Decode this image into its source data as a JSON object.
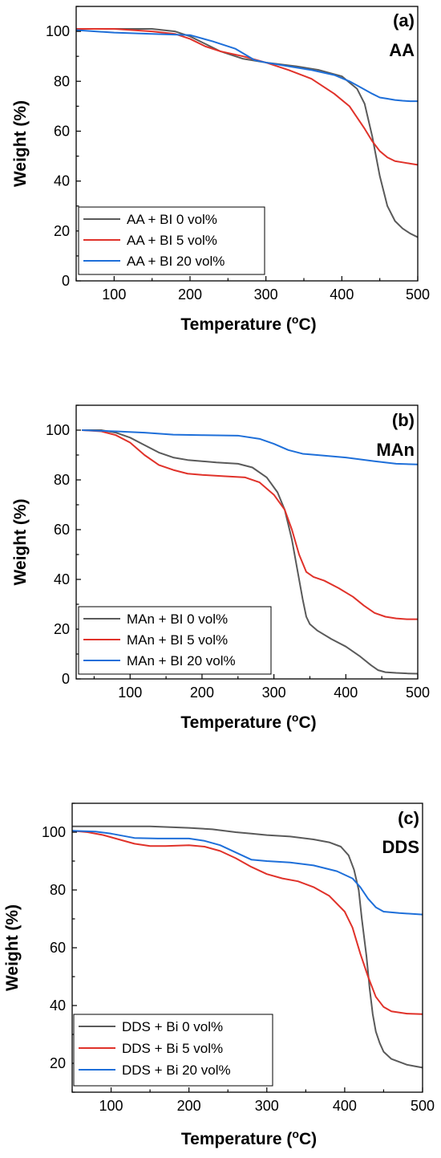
{
  "chart_data": [
    {
      "type": "line",
      "panel_label": "(a)",
      "panel_name": "AA",
      "xlabel": "Temperature (",
      "xlabel_sup": "o",
      "xlabel_end": "C)",
      "ylabel": "Weight (%)",
      "xlim": [
        50,
        500
      ],
      "ylim": [
        0,
        110
      ],
      "xticks": [
        100,
        200,
        300,
        400,
        500
      ],
      "yticks": [
        0,
        20,
        40,
        60,
        80,
        100
      ],
      "legend_position": "bottom-left",
      "series": [
        {
          "name": "AA + BI 0 vol%",
          "color": "#5a5a5a",
          "x": [
            50,
            100,
            150,
            180,
            200,
            220,
            240,
            270,
            300,
            340,
            370,
            400,
            420,
            430,
            440,
            450,
            460,
            470,
            480,
            490,
            500
          ],
          "y": [
            101,
            101,
            101,
            100,
            98,
            95,
            92,
            89,
            87.5,
            86,
            84.5,
            82,
            77,
            71,
            58,
            42,
            30,
            24,
            21,
            19,
            17.5
          ]
        },
        {
          "name": "AA + BI 5 vol%",
          "color": "#e0322a",
          "x": [
            50,
            100,
            150,
            180,
            200,
            220,
            240,
            270,
            300,
            330,
            360,
            390,
            410,
            430,
            440,
            450,
            460,
            470,
            480,
            490,
            500
          ],
          "y": [
            101,
            101,
            100,
            99,
            97,
            94,
            92,
            90,
            87.5,
            84.5,
            81,
            75,
            70,
            61,
            56,
            52,
            49.5,
            48,
            47.5,
            47,
            46.5
          ]
        },
        {
          "name": "AA + BI 20 vol%",
          "color": "#1e6fd9",
          "x": [
            50,
            100,
            150,
            200,
            230,
            260,
            285,
            300,
            330,
            360,
            390,
            410,
            425,
            440,
            450,
            460,
            470,
            480,
            490,
            500
          ],
          "y": [
            100.5,
            99.5,
            99,
            98.5,
            96,
            93,
            88.5,
            87.5,
            86,
            84.5,
            82.5,
            80,
            77.5,
            75,
            73.5,
            73,
            72.5,
            72.2,
            72,
            72
          ]
        }
      ]
    },
    {
      "type": "line",
      "panel_label": "(b)",
      "panel_name": "MAn",
      "xlabel": "Temperature (",
      "xlabel_sup": "o",
      "xlabel_end": "C)",
      "ylabel": "Weight (%)",
      "xlim": [
        25,
        500
      ],
      "ylim": [
        0,
        110
      ],
      "xticks": [
        100,
        200,
        300,
        400,
        500
      ],
      "yticks": [
        0,
        20,
        40,
        60,
        80,
        100
      ],
      "legend_position": "bottom-left",
      "series": [
        {
          "name": "MAn + BI 0 vol%",
          "color": "#5a5a5a",
          "x": [
            33,
            60,
            80,
            100,
            120,
            140,
            160,
            180,
            200,
            220,
            250,
            270,
            290,
            305,
            315,
            325,
            335,
            340,
            345,
            350,
            360,
            380,
            400,
            420,
            435,
            445,
            455,
            470,
            485,
            500
          ],
          "y": [
            100,
            100,
            99,
            97,
            94,
            91,
            89,
            88,
            87.5,
            87,
            86.5,
            85,
            81,
            75,
            68,
            56,
            40,
            32,
            25,
            22,
            19.5,
            16,
            13,
            9,
            5.5,
            3.5,
            2.7,
            2.4,
            2.2,
            2.1
          ]
        },
        {
          "name": "MAn + BI 5 vol%",
          "color": "#e0322a",
          "x": [
            33,
            60,
            80,
            100,
            120,
            140,
            160,
            180,
            200,
            230,
            260,
            280,
            300,
            315,
            325,
            335,
            345,
            355,
            370,
            390,
            410,
            425,
            440,
            455,
            470,
            485,
            500
          ],
          "y": [
            100,
            99.5,
            98,
            95,
            90,
            86,
            84,
            82.5,
            82,
            81.5,
            81,
            79,
            74,
            68,
            60,
            50,
            43,
            41,
            39.5,
            36.5,
            33,
            29.5,
            26.5,
            25,
            24.3,
            24,
            24
          ]
        },
        {
          "name": "MAn + BI 20 vol%",
          "color": "#1e6fd9",
          "x": [
            33,
            80,
            120,
            160,
            200,
            250,
            280,
            300,
            320,
            340,
            360,
            400,
            440,
            470,
            500
          ],
          "y": [
            100,
            99.5,
            99,
            98.2,
            98,
            97.8,
            96.5,
            94.5,
            92,
            90.5,
            90,
            89,
            87.5,
            86.5,
            86.2
          ]
        }
      ]
    },
    {
      "type": "line",
      "panel_label": "(c)",
      "panel_name": "DDS",
      "xlabel": "Temperature (",
      "xlabel_sup": "o",
      "xlabel_end": "C)",
      "ylabel": "Weight (%)",
      "xlim": [
        50,
        500
      ],
      "ylim": [
        10,
        110
      ],
      "xticks": [
        100,
        200,
        300,
        400,
        500
      ],
      "yticks": [
        20,
        40,
        60,
        80,
        100
      ],
      "legend_position": "bottom-left",
      "series": [
        {
          "name": "DDS + Bi 0 vol%",
          "color": "#5a5a5a",
          "x": [
            50,
            100,
            150,
            200,
            230,
            260,
            280,
            300,
            330,
            360,
            380,
            395,
            405,
            412,
            418,
            422,
            428,
            432,
            436,
            440,
            445,
            450,
            460,
            470,
            480,
            490,
            500
          ],
          "y": [
            102,
            102,
            102,
            101.5,
            101,
            100,
            99.5,
            99,
            98.5,
            97.5,
            96.5,
            95,
            92,
            87,
            80,
            70,
            57,
            46,
            37,
            31,
            27,
            24,
            21.5,
            20.5,
            19.5,
            19,
            18.5
          ]
        },
        {
          "name": "DDS + Bi 5 vol%",
          "color": "#e0322a",
          "x": [
            50,
            70,
            90,
            110,
            130,
            150,
            170,
            200,
            220,
            240,
            260,
            280,
            300,
            320,
            340,
            360,
            380,
            400,
            410,
            420,
            430,
            440,
            450,
            460,
            480,
            500
          ],
          "y": [
            100.5,
            100,
            99,
            97.5,
            96,
            95.2,
            95.2,
            95.5,
            95,
            93.5,
            91,
            88,
            85.5,
            84,
            83,
            81,
            78,
            72.5,
            67,
            58,
            50,
            43,
            39.5,
            38,
            37.2,
            37
          ]
        },
        {
          "name": "DDS + Bi 20 vol%",
          "color": "#1e6fd9",
          "x": [
            50,
            80,
            100,
            130,
            160,
            200,
            220,
            240,
            260,
            280,
            300,
            330,
            360,
            390,
            410,
            420,
            430,
            440,
            450,
            470,
            500
          ],
          "y": [
            100.5,
            100.2,
            99.5,
            98,
            97.8,
            97.8,
            97,
            95.5,
            93,
            90.5,
            90,
            89.5,
            88.5,
            86.5,
            84,
            81,
            77,
            74,
            72.5,
            72,
            71.5
          ]
        }
      ]
    }
  ]
}
